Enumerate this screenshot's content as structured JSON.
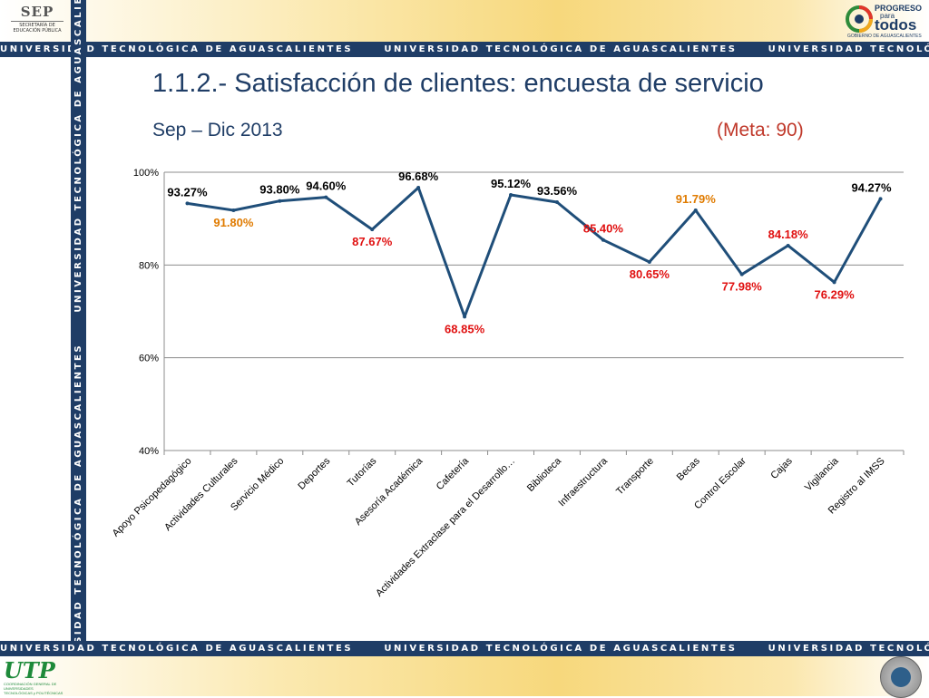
{
  "header": {
    "stripe_text": "UNIVERSIDAD TECNOLÓGICA DE AGUASCALIENTES",
    "sep_logo": {
      "name": "SEP",
      "line1": "SECRETARÍA DE",
      "line2": "EDUCACIÓN PÚBLICA"
    },
    "gov_logo": {
      "line1": "PROGRESO",
      "line2": "para",
      "line3": "todos",
      "line4": "GOBIERNO DE AGUASCALIENTES"
    }
  },
  "footer": {
    "utp_logo": {
      "name": "UTP",
      "line1": "COORDINACIÓN GENERAL DE UNIVERSIDADES",
      "line2": "TECNOLÓGICAS y POLITÉCNICAS"
    }
  },
  "slide": {
    "title": "1.1.2.- Satisfacción de clientes: encuesta de servicio",
    "period": "Sep – Dic 2013",
    "goal": "(Meta: 90)"
  },
  "colors": {
    "navy": "#1f3d66",
    "line": "#1f4e79",
    "label_above_goal": "#000000",
    "label_near_goal": "#e07b00",
    "label_below_goal": "#e01010"
  },
  "chart_data": {
    "type": "line",
    "title": "",
    "xlabel": "",
    "ylabel": "",
    "ylim": [
      40,
      100
    ],
    "y_ticks": [
      "40%",
      "60%",
      "80%",
      "100%"
    ],
    "grid": true,
    "categories": [
      "Apoyo Psicopedagógico",
      "Actividades Culturales",
      "Servicio Médico",
      "Deportes",
      "Tutorías",
      "Asesoría Académica",
      "Cafetería",
      "Actividades Extraclase para el Desarrollo…",
      "Biblioteca",
      "Infraestructura",
      "Transporte",
      "Becas",
      "Control Escolar",
      "Cajas",
      "Vigilancia",
      "Registro al IMSS"
    ],
    "values": [
      93.27,
      91.8,
      93.8,
      94.6,
      87.67,
      96.68,
      68.85,
      95.12,
      93.56,
      85.4,
      80.65,
      91.79,
      77.98,
      84.18,
      76.29,
      94.27
    ],
    "data_labels": [
      "93.27%",
      "91.80%",
      "93.80%",
      "94.60%",
      "87.67%",
      "96.68%",
      "68.85%",
      "95.12%",
      "93.56%",
      "85.40%",
      "80.65%",
      "91.79%",
      "77.98%",
      "84.18%",
      "76.29%",
      "94.27%"
    ],
    "label_colors": [
      "#000000",
      "#e07b00",
      "#000000",
      "#000000",
      "#e01010",
      "#000000",
      "#e01010",
      "#000000",
      "#000000",
      "#e01010",
      "#e01010",
      "#e07b00",
      "#e01010",
      "#e01010",
      "#e01010",
      "#000000"
    ]
  }
}
